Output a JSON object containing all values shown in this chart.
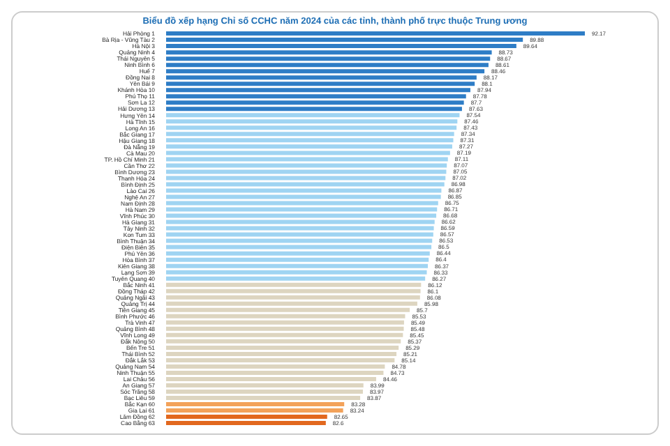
{
  "chart_data": {
    "type": "bar",
    "orientation": "horizontal",
    "title": "Biểu đồ xếp hạng Chỉ số CCHC năm 2024 của các tỉnh, thành phố trực thuộc Trung ương",
    "categories": [
      "Hải Phòng 1",
      "Bà Rịa - Vũng Tàu 2",
      "Hà Nội 3",
      "Quảng Ninh 4",
      "Thái Nguyên 5",
      "Ninh Bình 6",
      "Huế 7",
      "Đồng Nai 8",
      "Yên Bái 9",
      "Khánh Hòa 10",
      "Phú Thọ 11",
      "Sơn La 12",
      "Hải Dương 13",
      "Hưng Yên 14",
      "Hà Tĩnh 15",
      "Long An 16",
      "Bắc Giang 17",
      "Hậu Giang 18",
      "Đà Nẵng 19",
      "Cà Mau 20",
      "TP. Hồ Chí Minh 21",
      "Cần Thơ 22",
      "Bình Dương 23",
      "Thanh Hóa 24",
      "Bình Định 25",
      "Lào Cai 26",
      "Nghệ An 27",
      "Nam Định 28",
      "Hà Nam 29",
      "Vĩnh Phúc 30",
      "Hà Giang 31",
      "Tây Ninh 32",
      "Kon Tum 33",
      "Bình Thuận 34",
      "Điện Biên 35",
      "Phú Yên 36",
      "Hòa Bình 37",
      "Kiên Giang 38",
      "Lạng Sơn 39",
      "Tuyên Quang 40",
      "Bắc Ninh 41",
      "Đồng Tháp 42",
      "Quảng Ngãi 43",
      "Quảng Trị 44",
      "Tiền Giang 45",
      "Bình Phước 46",
      "Trà Vinh 47",
      "Quảng Bình 48",
      "Vĩnh Long 49",
      "Đắk Nông 50",
      "Bến Tre 51",
      "Thái Bình 52",
      "Đắk Lắk 53",
      "Quảng Nam 54",
      "Ninh Thuận 55",
      "Lai Châu 56",
      "An Giang 57",
      "Sóc Trăng 58",
      "Bạc Liêu 59",
      "Bắc Kạn 60",
      "Gia Lai 61",
      "Lâm Đồng 62",
      "Cao Bằng 63"
    ],
    "values": [
      92.17,
      89.88,
      89.64,
      88.73,
      88.67,
      88.61,
      88.46,
      88.17,
      88.1,
      87.94,
      87.78,
      87.7,
      87.63,
      87.54,
      87.46,
      87.43,
      87.34,
      87.31,
      87.27,
      87.19,
      87.11,
      87.07,
      87.05,
      87.02,
      86.98,
      86.87,
      86.85,
      86.75,
      86.71,
      86.68,
      86.62,
      86.59,
      86.57,
      86.53,
      86.5,
      86.44,
      86.4,
      86.37,
      86.33,
      86.27,
      86.12,
      86.1,
      86.08,
      85.98,
      85.7,
      85.53,
      85.49,
      85.48,
      85.45,
      85.37,
      85.29,
      85.21,
      85.14,
      84.78,
      84.73,
      84.46,
      83.99,
      83.97,
      83.87,
      83.28,
      83.24,
      82.65,
      82.6
    ],
    "colors": [
      "#2e7dc6",
      "#2e7dc6",
      "#2e7dc6",
      "#2e7dc6",
      "#2e7dc6",
      "#2e7dc6",
      "#2e7dc6",
      "#2e7dc6",
      "#2e7dc6",
      "#2e7dc6",
      "#2e7dc6",
      "#2e7dc6",
      "#2e7dc6",
      "#9fd4f2",
      "#9fd4f2",
      "#9fd4f2",
      "#9fd4f2",
      "#9fd4f2",
      "#9fd4f2",
      "#9fd4f2",
      "#9fd4f2",
      "#9fd4f2",
      "#9fd4f2",
      "#9fd4f2",
      "#9fd4f2",
      "#9fd4f2",
      "#9fd4f2",
      "#9fd4f2",
      "#9fd4f2",
      "#9fd4f2",
      "#9fd4f2",
      "#9fd4f2",
      "#9fd4f2",
      "#9fd4f2",
      "#9fd4f2",
      "#9fd4f2",
      "#9fd4f2",
      "#9fd4f2",
      "#9fd4f2",
      "#9fd4f2",
      "#ddd5c0",
      "#ddd5c0",
      "#ddd5c0",
      "#ddd5c0",
      "#ddd5c0",
      "#ddd5c0",
      "#ddd5c0",
      "#ddd5c0",
      "#ddd5c0",
      "#ddd5c0",
      "#ddd5c0",
      "#ddd5c0",
      "#ddd5c0",
      "#ddd5c0",
      "#ddd5c0",
      "#ddd5c0",
      "#ddd5c0",
      "#ddd5c0",
      "#ddd5c0",
      "#f3a25a",
      "#f3a25a",
      "#e2681e",
      "#e2681e"
    ],
    "xlim": [
      76.7,
      92.17
    ],
    "tick_labels": false,
    "data_labels": true,
    "grid": false,
    "legend": false
  }
}
